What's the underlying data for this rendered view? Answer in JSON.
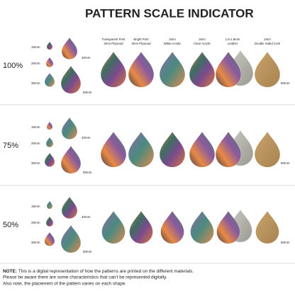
{
  "header": {
    "title": "PATTERN SCALE INDICATOR"
  },
  "columns": [
    {
      "lines": [
        "Transparent Print",
        "3mm Plywood"
      ]
    },
    {
      "lines": [
        "Bright Print",
        "3mm Plywood"
      ]
    },
    {
      "lines": [
        "3mm",
        "White Acrylic"
      ]
    },
    {
      "lines": [
        "3mm",
        "Clear Acrylic"
      ]
    },
    {
      "lines": [
        "1.6-1.8mm",
        "Leather"
      ]
    },
    {
      "lines": [
        "2mm",
        "Double Sided Cork"
      ]
    }
  ],
  "rows": [
    {
      "scale": "100%",
      "sizes": [
        "15mm",
        "20mm",
        "30mm",
        "40mm",
        "50mm"
      ],
      "right": "60mm"
    },
    {
      "scale": "75%",
      "sizes": [
        "15mm",
        "20mm",
        "30mm",
        "40mm",
        "50mm"
      ],
      "right": "60mm"
    },
    {
      "scale": "50%",
      "sizes": [
        "15mm",
        "20mm",
        "30mm",
        "40mm",
        "50mm"
      ],
      "right": "60mm"
    }
  ],
  "note": {
    "label": "NOTE:",
    "lines": [
      "This is a digital representation of how the patterns are printed on the different materials.",
      "Please be aware there are some characteristics that can't be represented digitally.",
      "Also note, the placement of the pattern varies on each shape."
    ]
  }
}
